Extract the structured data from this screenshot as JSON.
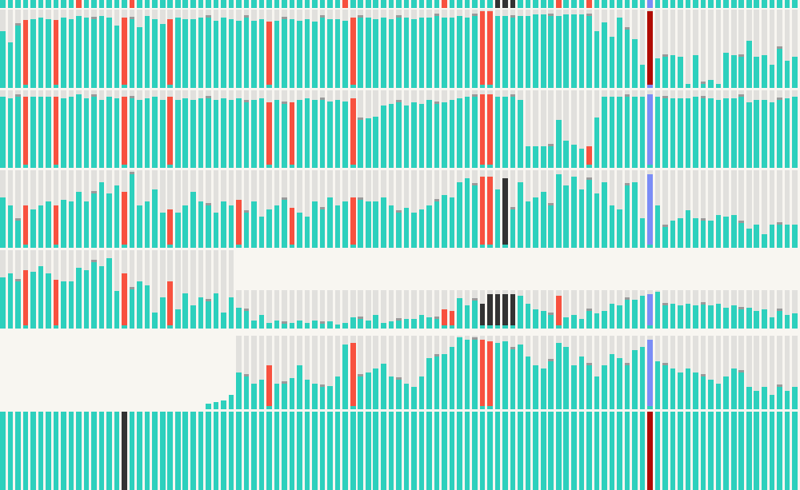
{
  "colors": {
    "background": "#f8f6f1",
    "empty": "#e1e0dd",
    "teal": "#2dd0bd",
    "red": "#f8513f",
    "dark": "#333333",
    "blue": "#7b8df6",
    "darkred": "#b00a00",
    "cap": "#9a9a9a"
  },
  "chart_data": {
    "type": "bar",
    "title": "",
    "xlabel": "",
    "ylabel": "",
    "ylim": [
      0,
      1
    ],
    "columns": 105,
    "bands": [
      {
        "name": "band-0",
        "start_col": 0,
        "values": [
          1,
          1,
          1,
          1,
          1,
          1,
          1,
          1,
          1,
          1,
          1,
          1,
          1,
          1,
          1,
          1,
          1,
          1,
          1,
          1,
          1,
          1,
          1,
          1,
          1,
          1,
          1,
          1,
          1,
          1,
          1,
          1,
          1,
          1,
          1,
          1,
          1,
          1,
          1,
          1,
          1,
          1,
          1,
          1,
          1,
          1,
          1,
          1,
          1,
          1,
          1,
          1,
          1,
          1,
          1,
          1,
          1,
          1,
          1,
          1,
          1,
          1,
          1,
          1,
          1,
          1,
          1,
          1,
          1,
          1,
          1,
          1,
          1,
          1,
          1,
          1,
          1,
          1,
          1,
          1,
          1,
          1,
          1,
          1,
          1,
          1,
          1,
          1,
          1,
          1,
          1,
          1,
          1,
          1,
          1,
          1,
          1,
          1,
          1,
          1,
          1,
          1,
          1,
          1,
          1
        ],
        "red_cols": [
          10,
          17,
          45,
          58,
          73,
          77
        ],
        "dark_cols": [
          65,
          66,
          67
        ],
        "blue_cols": [
          85
        ],
        "darkred_cols": []
      },
      {
        "name": "band-1",
        "start_col": 0,
        "values": [
          0.72,
          0.58,
          0.8,
          0.87,
          0.88,
          0.9,
          0.88,
          0.87,
          0.9,
          0.88,
          0.92,
          0.9,
          0.88,
          0.92,
          0.9,
          0.8,
          0.9,
          0.88,
          0.78,
          0.92,
          0.88,
          0.82,
          0.88,
          0.9,
          0.88,
          0.88,
          0.9,
          0.9,
          0.86,
          0.9,
          0.88,
          0.86,
          0.9,
          0.86,
          0.88,
          0.85,
          0.86,
          0.88,
          0.88,
          0.86,
          0.88,
          0.85,
          0.9,
          0.88,
          0.88,
          0.86,
          0.9,
          0.9,
          0.9,
          0.88,
          0.9,
          0.88,
          0.9,
          0.9,
          0.88,
          0.9,
          0.9,
          0.92,
          0.9,
          0.9,
          0.92,
          0.9,
          0.92,
          0.98,
          0.98,
          0.92,
          0.92,
          0.9,
          0.92,
          0.92,
          0.94,
          0.94,
          0.92,
          0.92,
          0.94,
          0.94,
          0.94,
          0.92,
          0.72,
          0.84,
          0.65,
          0.9,
          0.75,
          0.62,
          0.3,
          0.98,
          0.38,
          0.4,
          0.42,
          0.4,
          0.05,
          0.42,
          0.05,
          0.1,
          0.05,
          0.45,
          0.42,
          0.4,
          0.6,
          0.4,
          0.42,
          0.3,
          0.5,
          0.35,
          0.4
        ],
        "red_cols": [
          3,
          7,
          16,
          22,
          35,
          46,
          63,
          64
        ],
        "dark_cols": [],
        "blue_cols": [],
        "darkred_cols": [
          85
        ]
      },
      {
        "name": "band-2",
        "start_col": 0,
        "values": [
          0.92,
          0.9,
          0.92,
          0.92,
          0.92,
          0.92,
          0.92,
          0.92,
          0.9,
          0.92,
          0.95,
          0.9,
          0.92,
          0.88,
          0.92,
          0.9,
          0.92,
          0.9,
          0.88,
          0.9,
          0.92,
          0.88,
          0.92,
          0.88,
          0.9,
          0.88,
          0.9,
          0.9,
          0.88,
          0.9,
          0.88,
          0.9,
          0.85,
          0.88,
          0.9,
          0.85,
          0.88,
          0.82,
          0.85,
          0.88,
          0.9,
          0.88,
          0.88,
          0.86,
          0.88,
          0.86,
          0.9,
          0.62,
          0.64,
          0.66,
          0.8,
          0.82,
          0.85,
          0.8,
          0.85,
          0.82,
          0.88,
          0.82,
          0.85,
          0.88,
          0.9,
          0.92,
          0.92,
          0.95,
          0.95,
          0.92,
          0.92,
          0.92,
          0.88,
          0.28,
          0.28,
          0.28,
          0.28,
          0.62,
          0.35,
          0.3,
          0.25,
          0.28,
          0.65,
          0.92,
          0.92,
          0.92,
          0.92,
          0.92,
          0.92,
          0.95,
          0.92,
          0.9,
          0.9,
          0.9,
          0.9,
          0.92,
          0.9,
          0.9,
          0.88,
          0.9,
          0.9,
          0.92,
          0.85,
          0.88,
          0.88,
          0.85,
          0.88,
          0.9,
          0.92
        ],
        "red_cols": [
          3,
          7,
          16,
          22,
          35,
          38,
          46,
          63,
          64,
          77
        ],
        "dark_cols": [],
        "blue_cols": [
          85
        ],
        "darkred_cols": []
      },
      {
        "name": "band-3",
        "start_col": 0,
        "values": [
          0.65,
          0.55,
          0.35,
          0.55,
          0.5,
          0.55,
          0.6,
          0.55,
          0.62,
          0.6,
          0.72,
          0.6,
          0.7,
          0.85,
          0.7,
          0.8,
          0.72,
          0.95,
          0.55,
          0.6,
          0.75,
          0.45,
          0.5,
          0.45,
          0.55,
          0.72,
          0.6,
          0.55,
          0.45,
          0.6,
          0.55,
          0.62,
          0.45,
          0.6,
          0.4,
          0.5,
          0.55,
          0.62,
          0.52,
          0.45,
          0.4,
          0.6,
          0.5,
          0.65,
          0.55,
          0.6,
          0.65,
          0.62,
          0.6,
          0.6,
          0.65,
          0.55,
          0.45,
          0.52,
          0.45,
          0.5,
          0.55,
          0.6,
          0.68,
          0.65,
          0.85,
          0.9,
          0.8,
          0.92,
          0.92,
          0.75,
          0.9,
          0.5,
          0.85,
          0.6,
          0.65,
          0.72,
          0.55,
          0.95,
          0.8,
          0.92,
          0.75,
          0.88,
          0.7,
          0.85,
          0.55,
          0.5,
          0.8,
          0.85,
          0.38,
          0.95,
          0.55,
          0.27,
          0.35,
          0.38,
          0.48,
          0.38,
          0.35,
          0.35,
          0.42,
          0.4,
          0.42,
          0.32,
          0.25,
          0.3,
          0.18,
          0.3,
          0.3,
          0.3,
          0.3
        ],
        "red_cols": [
          3,
          7,
          16,
          22,
          31,
          38,
          46,
          63,
          64
        ],
        "dark_cols": [
          66
        ],
        "blue_cols": [
          85
        ],
        "darkred_cols": []
      },
      {
        "name": "band-4-left",
        "start_col": 0,
        "values": [
          0.65,
          0.7,
          0.6,
          0.75,
          0.72,
          0.8,
          0.7,
          0.62,
          0.6,
          0.6,
          0.78,
          0.75,
          0.85,
          0.8,
          0.9,
          0.48,
          0.7,
          0.5,
          0.6,
          0.55,
          0.2,
          0.4,
          0.6,
          0.25,
          0.45,
          0.3,
          0.4,
          0.35,
          0.45,
          0.2,
          0.4
        ],
        "red_cols": [
          3,
          7,
          16,
          22
        ],
        "dark_cols": [],
        "blue_cols": [],
        "darkred_cols": []
      },
      {
        "name": "band-4-right",
        "start_col": 31,
        "values": [
          0.55,
          0.45,
          0.2,
          0.35,
          0.15,
          0.2,
          0.12,
          0.15,
          0.2,
          0.15,
          0.2,
          0.12,
          0.18,
          0.1,
          0.15,
          0.3,
          0.25,
          0.2,
          0.35,
          0.15,
          0.18,
          0.2,
          0.25,
          0.25,
          0.35,
          0.3,
          0.25,
          0.5,
          0.45,
          0.8,
          0.6,
          0.72,
          0.65,
          0.9,
          0.9,
          0.9,
          0.9,
          0.85,
          0.65,
          0.5,
          0.45,
          0.35,
          0.85,
          0.3,
          0.35,
          0.25,
          0.45,
          0.4,
          0.45,
          0.65,
          0.6,
          0.75,
          0.75,
          0.85,
          0.9,
          0.95,
          0.6,
          0.65,
          0.6,
          0.65,
          0.6,
          0.62,
          0.6,
          0.65,
          0.55,
          0.6,
          0.5,
          0.55,
          0.45,
          0.5,
          0.3,
          0.45,
          0.35,
          0.4
        ],
        "red_cols": [
          58,
          59,
          73
        ],
        "dark_cols": [
          63,
          64,
          65,
          66,
          67
        ],
        "blue_cols": [
          85
        ],
        "darkred_cols": []
      },
      {
        "name": "band-5",
        "start_col": 31,
        "values": [
          0.5,
          0.45,
          0.35,
          0.4,
          0.6,
          0.35,
          0.35,
          0.42,
          0.6,
          0.4,
          0.35,
          0.3,
          0.32,
          0.45,
          0.88,
          0.9,
          0.45,
          0.5,
          0.55,
          0.62,
          0.45,
          0.4,
          0.35,
          0.3,
          0.45,
          0.7,
          0.72,
          0.75,
          0.85,
          0.98,
          0.95,
          0.95,
          0.95,
          0.92,
          0.9,
          0.92,
          0.82,
          0.88,
          0.72,
          0.6,
          0.55,
          0.65,
          0.9,
          0.85,
          0.6,
          0.72,
          0.6,
          0.45,
          0.6,
          0.75,
          0.7,
          0.6,
          0.8,
          0.85,
          0.95,
          0.65,
          0.6,
          0.55,
          0.5,
          0.55,
          0.5,
          0.45,
          0.4,
          0.35,
          0.45,
          0.55,
          0.5,
          0.3,
          0.25,
          0.3,
          0.2,
          0.3,
          0.25,
          0.3
        ],
        "red_cols": [
          35,
          46,
          63,
          64
        ],
        "dark_cols": [],
        "blue_cols": [
          85
        ],
        "darkred_cols": []
      },
      {
        "name": "band-6",
        "start_col": 0,
        "values": [
          1,
          1,
          1,
          1,
          1,
          1,
          1,
          1,
          1,
          1,
          1,
          1,
          1,
          1,
          1,
          1,
          1,
          1,
          1,
          1,
          1,
          1,
          1,
          1,
          1,
          1,
          1,
          1,
          1,
          1,
          1,
          1,
          1,
          1,
          1,
          1,
          1,
          1,
          1,
          1,
          1,
          1,
          1,
          1,
          1,
          1,
          1,
          1,
          1,
          1,
          1,
          1,
          1,
          1,
          1,
          1,
          1,
          1,
          1,
          1,
          1,
          1,
          1,
          1,
          1,
          1,
          1,
          1,
          1,
          1,
          1,
          1,
          1,
          1,
          1,
          1,
          1,
          1,
          1,
          1,
          1,
          1,
          1,
          1,
          1,
          1,
          1,
          1,
          1,
          1,
          1,
          1,
          1,
          1,
          1,
          1,
          1,
          1,
          1,
          1,
          1,
          1,
          1,
          1,
          1
        ],
        "red_cols": [],
        "dark_cols": [
          16
        ],
        "blue_cols": [],
        "darkred_cols": [
          85
        ]
      }
    ]
  }
}
